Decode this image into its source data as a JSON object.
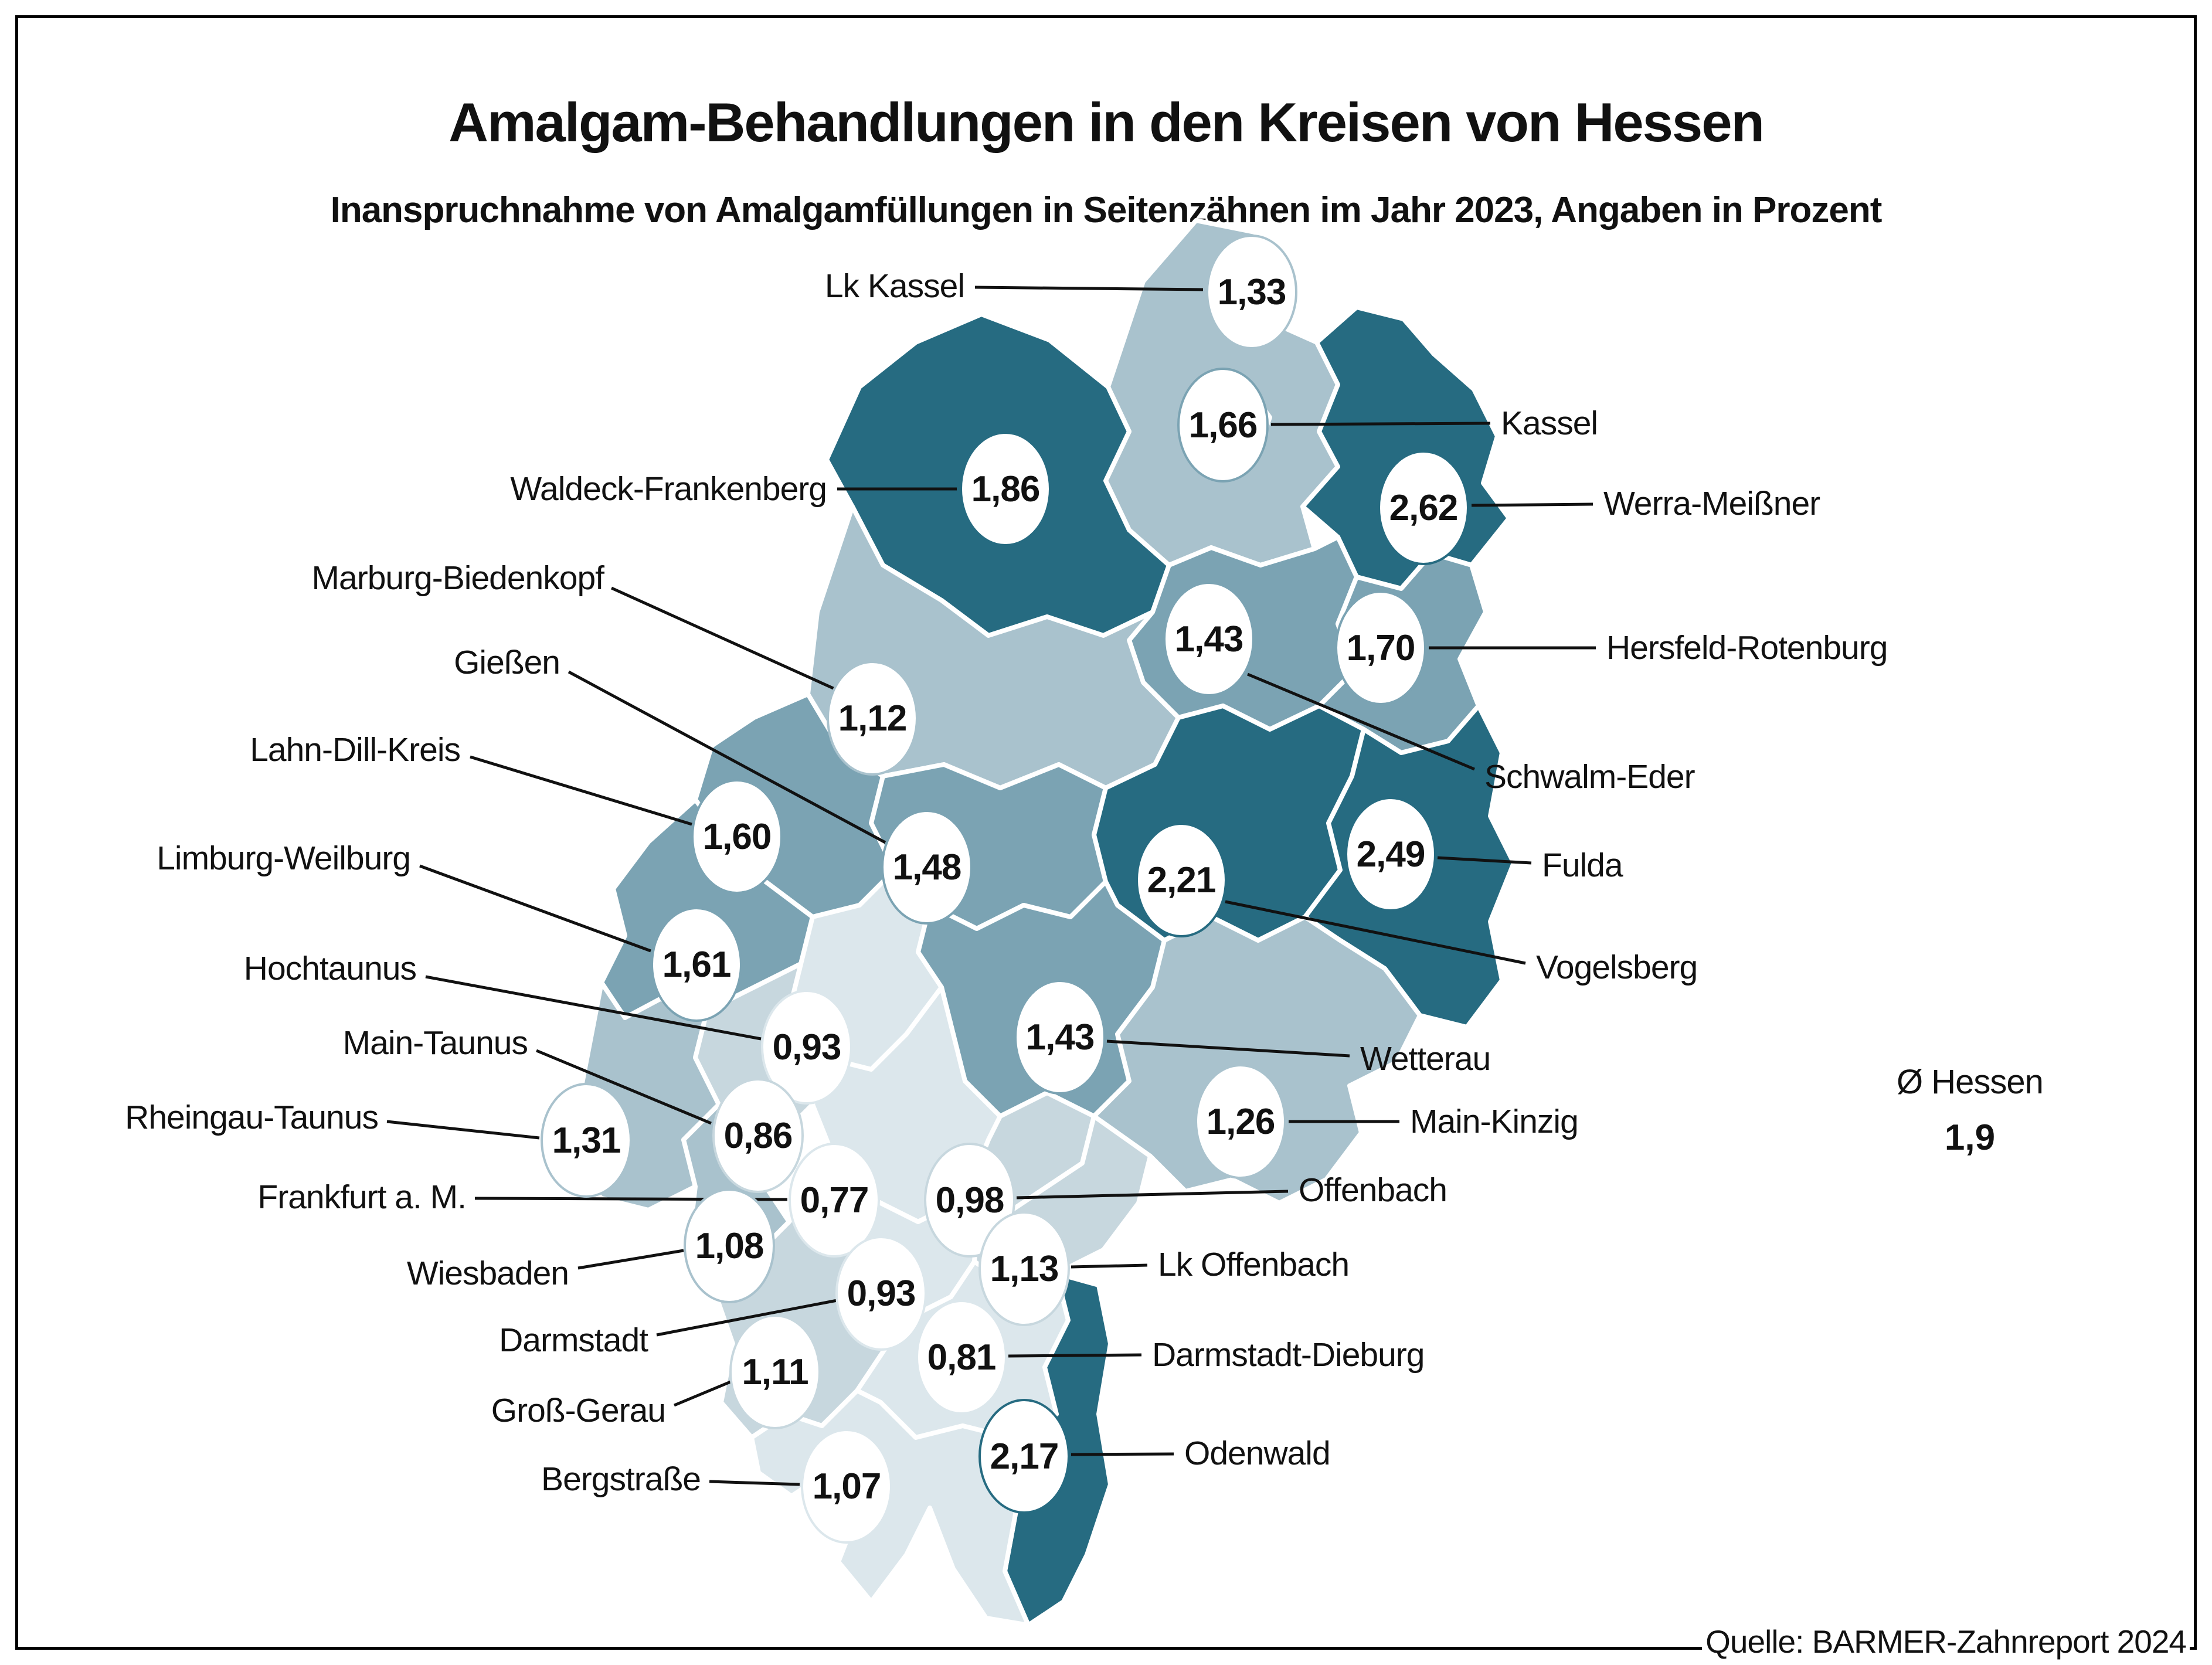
{
  "title": "Amalgam-Behandlungen in den Kreisen von Hessen",
  "subtitle": "Inanspruchnahme von Amalgamfüllungen in Seitenzähnen im Jahr 2023, Angaben in Prozent",
  "source": "Quelle: BARMER-Zahnreport 2024",
  "average": {
    "label": "Ø Hessen",
    "value": "1,9"
  },
  "colors": {
    "dark": "#266B81",
    "medium": "#7BA3B3",
    "light": "#A9C2CD",
    "lighter": "#C7D7DE",
    "lightest": "#DCE7EC",
    "leader": "#111111",
    "text": "#111111",
    "background": "#FFFFFF"
  },
  "chart_data": {
    "type": "choropleth_map",
    "title": "Amalgam-Behandlungen in den Kreisen von Hessen",
    "subtitle": "Inanspruchnahme von Amalgamfüllungen in Seitenzähnen im Jahr 2023, Angaben in Prozent",
    "region": "Hessen",
    "unit": "Prozent",
    "year": "2023",
    "average_label": "Ø Hessen",
    "average_value": "1,9",
    "source": "Quelle: BARMER-Zahnreport 2024",
    "districts": [
      {
        "id": "lk-kassel",
        "name": "Lk Kassel",
        "value": "1,33",
        "bucket": "light"
      },
      {
        "id": "kassel",
        "name": "Kassel",
        "value": "1,66",
        "bucket": "medium"
      },
      {
        "id": "waldeck-frankenberg",
        "name": "Waldeck-Frankenberg",
        "value": "1,86",
        "bucket": "dark"
      },
      {
        "id": "werra-meissner",
        "name": "Werra-Meißner",
        "value": "2,62",
        "bucket": "dark"
      },
      {
        "id": "schwalm-eder",
        "name": "Schwalm-Eder",
        "value": "1,43",
        "bucket": "medium"
      },
      {
        "id": "hersfeld-rotenburg",
        "name": "Hersfeld-Rotenburg",
        "value": "1,70",
        "bucket": "medium"
      },
      {
        "id": "marburg-biedenkopf",
        "name": "Marburg-Biedenkopf",
        "value": "1,12",
        "bucket": "light"
      },
      {
        "id": "lahn-dill-kreis",
        "name": "Lahn-Dill-Kreis",
        "value": "1,60",
        "bucket": "medium"
      },
      {
        "id": "giessen",
        "name": "Gießen",
        "value": "1,48",
        "bucket": "medium"
      },
      {
        "id": "vogelsberg",
        "name": "Vogelsberg",
        "value": "2,21",
        "bucket": "dark"
      },
      {
        "id": "fulda",
        "name": "Fulda",
        "value": "2,49",
        "bucket": "dark"
      },
      {
        "id": "limburg-weilburg",
        "name": "Limburg-Weilburg",
        "value": "1,61",
        "bucket": "medium"
      },
      {
        "id": "hochtaunus",
        "name": "Hochtaunus",
        "value": "0,93",
        "bucket": "lightest"
      },
      {
        "id": "wetterau",
        "name": "Wetterau",
        "value": "1,43",
        "bucket": "medium"
      },
      {
        "id": "main-kinzig",
        "name": "Main-Kinzig",
        "value": "1,26",
        "bucket": "light"
      },
      {
        "id": "rheingau-taunus",
        "name": "Rheingau-Taunus",
        "value": "1,31",
        "bucket": "light"
      },
      {
        "id": "main-taunus",
        "name": "Main-Taunus",
        "value": "0,86",
        "bucket": "lighter"
      },
      {
        "id": "wiesbaden",
        "name": "Wiesbaden",
        "value": "1,08",
        "bucket": "light"
      },
      {
        "id": "frankfurt",
        "name": "Frankfurt a. M.",
        "value": "0,77",
        "bucket": "lightest"
      },
      {
        "id": "offenbach",
        "name": "Offenbach",
        "value": "0,98",
        "bucket": "lighter"
      },
      {
        "id": "lk-offenbach",
        "name": "Lk Offenbach",
        "value": "1,13",
        "bucket": "lighter"
      },
      {
        "id": "darmstadt",
        "name": "Darmstadt",
        "value": "0,93",
        "bucket": "lightest"
      },
      {
        "id": "gross-gerau",
        "name": "Groß-Gerau",
        "value": "1,11",
        "bucket": "lighter"
      },
      {
        "id": "darmstadt-dieburg",
        "name": "Darmstadt-Dieburg",
        "value": "0,81",
        "bucket": "lightest"
      },
      {
        "id": "odenwald",
        "name": "Odenwald",
        "value": "2,17",
        "bucket": "dark"
      },
      {
        "id": "bergstrasse",
        "name": "Bergstraße",
        "value": "1,07",
        "bucket": "lightest"
      }
    ]
  }
}
